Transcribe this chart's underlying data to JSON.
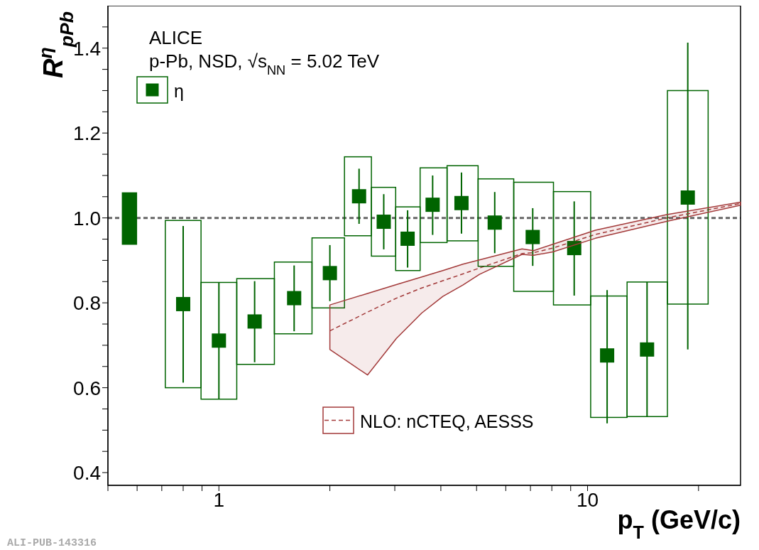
{
  "chart_data": {
    "type": "scatter",
    "title": "ALICE",
    "subtitle": "p-Pb, NSD, √s$_{NN}$ = 5.02 TeV",
    "xlabel": "p$_{T}$ (GeV/c)",
    "ylabel": "R$^{η}$$_{pPb}$",
    "annotations": [
      "ALI-PUB-143316"
    ],
    "log": "x",
    "xlim": [
      0.5,
      26
    ],
    "ylim": [
      0.37,
      1.5
    ],
    "xticks": [
      {
        "value": 0.5,
        "label": null
      },
      {
        "value": 0.6,
        "label": null
      },
      {
        "value": 0.7,
        "label": null
      },
      {
        "value": 0.8,
        "label": null
      },
      {
        "value": 0.9,
        "label": null
      },
      1,
      {
        "value": 2,
        "label": null
      },
      {
        "value": 3,
        "label": null
      },
      {
        "value": 4,
        "label": null
      },
      {
        "value": 5,
        "label": null
      },
      {
        "value": 6,
        "label": null
      },
      {
        "value": 7,
        "label": null
      },
      {
        "value": 8,
        "label": null
      },
      {
        "value": 9,
        "label": null
      },
      10,
      {
        "value": 20,
        "label": null
      }
    ],
    "yticks": [
      0.4,
      {
        "value": 0.45,
        "label": null
      },
      {
        "value": 0.5,
        "label": null
      },
      {
        "value": 0.55,
        "label": null
      },
      0.6,
      {
        "value": 0.65,
        "label": null
      },
      {
        "value": 0.7,
        "label": null
      },
      {
        "value": 0.75,
        "label": null
      },
      0.8,
      {
        "value": 0.85,
        "label": null
      },
      {
        "value": 0.9,
        "label": null
      },
      {
        "value": 0.95,
        "label": null
      },
      {
        "value": 1,
        "label": "1.0"
      },
      {
        "value": 1.05,
        "label": null
      },
      {
        "value": 1.1,
        "label": null
      },
      {
        "value": 1.15,
        "label": null
      },
      1.2,
      {
        "value": 1.25,
        "label": null
      },
      {
        "value": 1.3,
        "label": null
      },
      {
        "value": 1.35,
        "label": null
      },
      1.4,
      {
        "value": 1.45,
        "label": null
      }
    ],
    "legend": "left",
    "ref_lines": [
      {
        "axis": "y",
        "value": 1,
        "color": "#666666",
        "line_style": "dashed"
      }
    ],
    "series": [
      {
        "name": "η",
        "color": "#006400",
        "marker": "square",
        "x": [
          0.8,
          1.0,
          1.25,
          1.6,
          2.0,
          2.4,
          2.8,
          3.25,
          3.8,
          4.55,
          5.6,
          7.1,
          9.2,
          11.3,
          14.5,
          18.7
        ],
        "values": [
          0.797,
          0.711,
          0.756,
          0.811,
          0.87,
          1.051,
          0.991,
          0.951,
          1.031,
          1.035,
          0.989,
          0.955,
          0.929,
          0.676,
          0.69,
          1.048
        ],
        "errors": [
          [
            0.612,
            0.981
          ],
          [
            0.573,
            0.848
          ],
          [
            0.66,
            0.851
          ],
          [
            0.733,
            0.888
          ],
          [
            0.804,
            0.936
          ],
          [
            0.986,
            1.116
          ],
          [
            0.926,
            1.056
          ],
          [
            0.883,
            1.018
          ],
          [
            0.96,
            1.1
          ],
          [
            0.963,
            1.107
          ],
          [
            0.917,
            1.061
          ],
          [
            0.887,
            1.023
          ],
          [
            0.817,
            1.039
          ],
          [
            0.516,
            0.83
          ],
          [
            0.532,
            0.849
          ],
          [
            0.69,
            1.413
          ]
        ]
      },
      {
        "type": "bar",
        "color": "#006400",
        "x": [
          0.572
        ],
        "base": [
          0.938
        ],
        "values": [
          0.121
        ]
      },
      {
        "type": "bar",
        "color": "#006400",
        "x": [
          0.8,
          1.0,
          1.25,
          1.6,
          2.0,
          2.4,
          2.8,
          3.25,
          3.8,
          4.55,
          5.6,
          7.1,
          9.2,
          11.3,
          14.5,
          18.7
        ],
        "base": [
          0.6,
          0.573,
          0.655,
          0.727,
          0.788,
          0.958,
          0.91,
          0.876,
          0.942,
          0.946,
          0.886,
          0.827,
          0.795,
          0.53,
          0.532,
          0.797
        ],
        "values": [
          0.394,
          0.275,
          0.202,
          0.169,
          0.165,
          0.186,
          0.162,
          0.15,
          0.176,
          0.177,
          0.206,
          0.257,
          0.267,
          0.286,
          0.317,
          0.503
        ]
      },
      {
        "name": "NLO: nCTEQ, AESSS",
        "type": "line",
        "color": "#a33a3a",
        "line_style": "dashed",
        "x": [
          2.0,
          2.53,
          3.03,
          3.55,
          4.05,
          4.59,
          5.09,
          6.64,
          7.14,
          8.05,
          10.5,
          16.4,
          26
        ],
        "values": [
          0.734,
          0.778,
          0.811,
          0.835,
          0.852,
          0.868,
          0.882,
          0.916,
          0.918,
          0.929,
          0.961,
          1.0,
          1.034
        ],
        "lower": [
          0.69,
          0.63,
          0.716,
          0.776,
          0.815,
          0.842,
          0.867,
          0.914,
          0.912,
          0.92,
          0.952,
          0.992,
          1.03
        ],
        "upper": [
          0.795,
          0.822,
          0.843,
          0.861,
          0.876,
          0.891,
          0.901,
          0.927,
          0.923,
          0.938,
          0.971,
          1.008,
          1.037
        ]
      }
    ]
  }
}
